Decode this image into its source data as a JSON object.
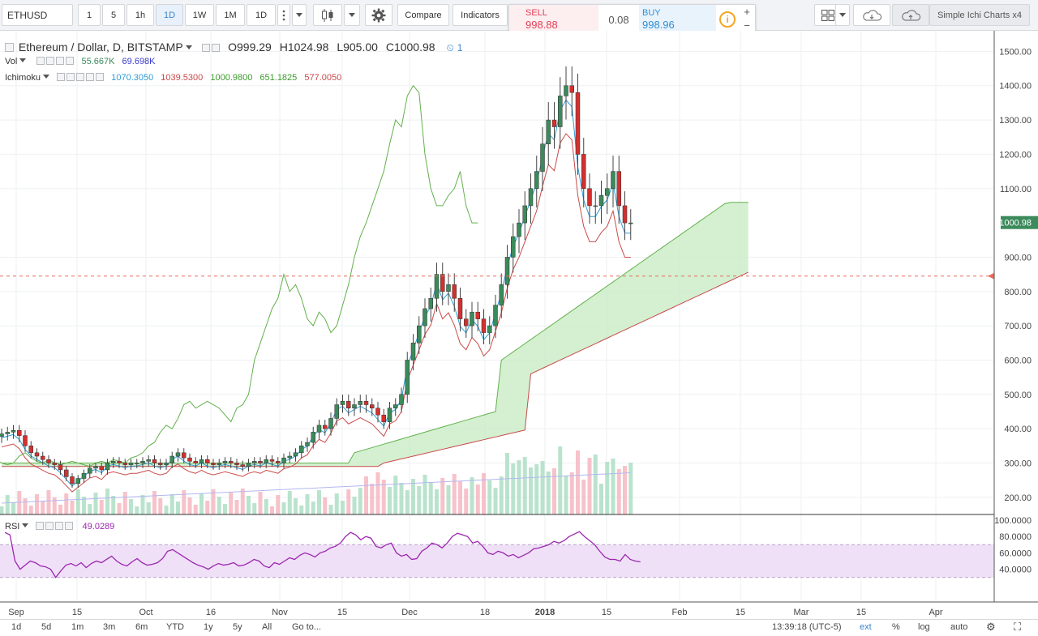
{
  "toolbar": {
    "symbol": "ETHUSD",
    "intervals": [
      "1",
      "5",
      "1h",
      "1D",
      "1W",
      "1M",
      "1D"
    ],
    "selected_interval_index": 3,
    "compare_label": "Compare",
    "indicators_label": "Indicators",
    "layout_name": "Simple Ichi Charts x4"
  },
  "trade": {
    "sell_label": "SELL",
    "sell_price": "998.88",
    "spread": "0.08",
    "buy_label": "BUY",
    "buy_price": "998.96",
    "plus": "+",
    "minus": "−",
    "info": "i"
  },
  "legend": {
    "title": "Ethereum / Dollar, D, BITSTAMP",
    "open": "O999.29",
    "high": "H1024.98",
    "low": "L905.00",
    "close": "C1000.98",
    "alerts_count": "1",
    "vol_label": "Vol",
    "vol_values": [
      "55.667K",
      "69.698K"
    ],
    "ichimoku_label": "Ichimoku",
    "ichimoku_values": [
      "1070.3050",
      "1039.5300",
      "1000.9800",
      "651.1825",
      "577.0050"
    ],
    "rsi_label": "RSI",
    "rsi_value": "49.0289"
  },
  "price_axis": {
    "labels": [
      "1500.00",
      "1400.00",
      "1300.00",
      "1200.00",
      "1100.00",
      "900.00",
      "800.00",
      "700.00",
      "600.00",
      "500.00",
      "400.00",
      "300.00",
      "200.00"
    ],
    "last_price": "1000.98"
  },
  "rsi_axis": {
    "labels": [
      "100.0000",
      "80.0000",
      "60.0000",
      "40.0000"
    ]
  },
  "time_axis": {
    "labels": [
      "Sep",
      "15",
      "Oct",
      "16",
      "Nov",
      "15",
      "Dec",
      "18",
      "2018",
      "15",
      "Feb",
      "15",
      "Mar",
      "15",
      "Apr"
    ]
  },
  "bottom": {
    "ranges": [
      "1d",
      "5d",
      "1m",
      "3m",
      "6m",
      "YTD",
      "1y",
      "5y",
      "All"
    ],
    "goto": "Go to...",
    "clock": "13:39:18 (UTC-5)",
    "ext": "ext",
    "percent": "%",
    "log": "log",
    "auto": "auto"
  },
  "colors": {
    "up": "#3b8a5b",
    "down": "#d2302f",
    "tenkan": "#2e9cd6",
    "kijun": "#c94a4a",
    "chikou": "#62b04c",
    "cloud": "#c9ecc6",
    "rsi_line": "#9c27b0",
    "rsi_band": "#efe0f7"
  },
  "chart_data": {
    "type": "candlestick",
    "symbol": "ETHUSD",
    "ylim": [
      150,
      1560
    ],
    "x_ticks": [
      "Sep",
      "15",
      "Oct",
      "16",
      "Nov",
      "15",
      "Dec",
      "18",
      "2018",
      "15",
      "Feb",
      "15",
      "Mar",
      "15",
      "Apr"
    ],
    "close": [
      385,
      390,
      395,
      380,
      350,
      330,
      320,
      310,
      300,
      295,
      280,
      260,
      240,
      255,
      270,
      285,
      290,
      280,
      300,
      305,
      300,
      295,
      300,
      300,
      305,
      310,
      300,
      295,
      300,
      320,
      330,
      315,
      305,
      300,
      310,
      300,
      295,
      300,
      305,
      300,
      295,
      290,
      300,
      305,
      300,
      310,
      305,
      300,
      315,
      320,
      330,
      350,
      360,
      390,
      410,
      400,
      430,
      470,
      480,
      460,
      470,
      480,
      470,
      460,
      440,
      420,
      460,
      470,
      500,
      600,
      650,
      700,
      750,
      780,
      850,
      800,
      820,
      780,
      720,
      700,
      740,
      720,
      680,
      700,
      760,
      820,
      900,
      960,
      1000,
      1050,
      1100,
      1150,
      1230,
      1300,
      1280,
      1370,
      1400,
      1380,
      1200,
      1100,
      1050,
      1050,
      1080,
      1100,
      1150,
      1050,
      1000,
      1000
    ],
    "rsi": [
      85,
      82,
      50,
      40,
      45,
      50,
      48,
      44,
      43,
      40,
      30,
      38,
      45,
      47,
      44,
      48,
      42,
      47,
      50,
      48,
      52,
      56,
      50,
      46,
      44,
      49,
      53,
      48,
      45,
      46,
      48,
      53,
      62,
      64,
      60,
      56,
      52,
      48,
      45,
      43,
      40,
      44,
      47,
      45,
      46,
      48,
      44,
      45,
      48,
      52,
      50,
      44,
      42,
      48,
      46,
      50,
      54,
      52,
      57,
      60,
      58,
      55,
      60,
      62,
      66,
      68,
      72,
      80,
      85,
      82,
      76,
      80,
      78,
      68,
      66,
      70,
      72,
      60,
      56,
      58,
      52,
      53,
      62,
      66,
      72,
      70,
      66,
      72,
      80,
      84,
      82,
      80,
      72,
      74,
      68,
      60,
      58,
      62,
      60,
      56,
      58,
      54,
      57,
      60,
      65,
      66,
      68,
      70,
      74,
      72,
      75,
      80,
      83,
      86,
      80,
      75,
      70,
      62,
      55,
      52,
      52,
      50,
      58,
      52,
      50,
      49
    ],
    "last_price": 1000.98,
    "rsi_band": [
      30,
      70
    ]
  }
}
